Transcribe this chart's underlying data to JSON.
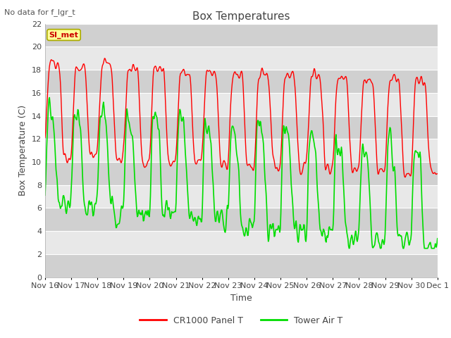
{
  "title": "Box Temperatures",
  "xlabel": "Time",
  "ylabel": "Box Temperature (C)",
  "note": "No data for f_lgr_t",
  "annotation": "SI_met",
  "ylim": [
    0,
    22
  ],
  "yticks": [
    0,
    2,
    4,
    6,
    8,
    10,
    12,
    14,
    16,
    18,
    20,
    22
  ],
  "xtick_labels": [
    "Nov 16",
    "Nov 17",
    "Nov 18",
    "Nov 19",
    "Nov 20",
    "Nov 21",
    "Nov 22",
    "Nov 23",
    "Nov 24",
    "Nov 25",
    "Nov 26",
    "Nov 27",
    "Nov 28",
    "Nov 29",
    "Nov 30",
    "Dec 1"
  ],
  "panel_color": "#ff0000",
  "tower_color": "#00dd00",
  "bg_color": "#ffffff",
  "plot_bg_color": "#e8e8e8",
  "grid_color": "#ffffff",
  "legend_labels": [
    "CR1000 Panel T",
    "Tower Air T"
  ],
  "title_fontsize": 11,
  "axis_fontsize": 9,
  "tick_fontsize": 8,
  "note_fontsize": 8,
  "annot_fontsize": 8
}
